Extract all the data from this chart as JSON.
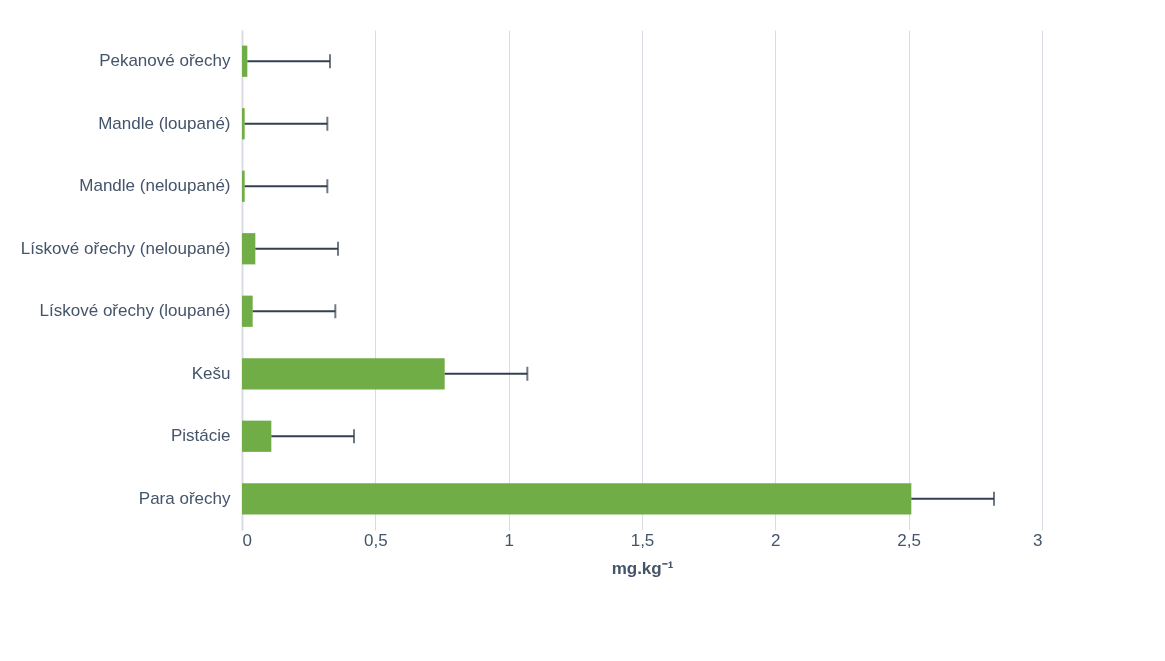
{
  "chart_data": {
    "type": "bar",
    "orientation": "horizontal",
    "xlabel": "mg.kg⁻¹",
    "categories": [
      "Pekanové ořechy",
      "Mandle (loupané)",
      "Mandle (neloupané)",
      "Lískové ořechy (neloupané)",
      "Lískové ořechy (loupané)",
      "Kešu",
      "Pistácie",
      "Para ořechy"
    ],
    "values": [
      0.02,
      0.01,
      0.01,
      0.05,
      0.04,
      0.76,
      0.11,
      2.51
    ],
    "errors": [
      [
        0.02,
        0.33
      ],
      [
        0.01,
        0.32
      ],
      [
        0.01,
        0.32
      ],
      [
        0.05,
        0.36
      ],
      [
        0.04,
        0.35
      ],
      [
        0.76,
        1.07
      ],
      [
        0.11,
        0.42
      ],
      [
        2.51,
        2.82
      ]
    ],
    "color": "#70ad47",
    "xlim": [
      0,
      3
    ],
    "xticks": [
      0,
      {
        "value": 0.5,
        "label": "0,5"
      },
      1,
      {
        "value": 1.5,
        "label": "1,5"
      },
      2,
      {
        "value": 2.5,
        "label": "2,5"
      },
      3
    ],
    "grid": "x"
  }
}
